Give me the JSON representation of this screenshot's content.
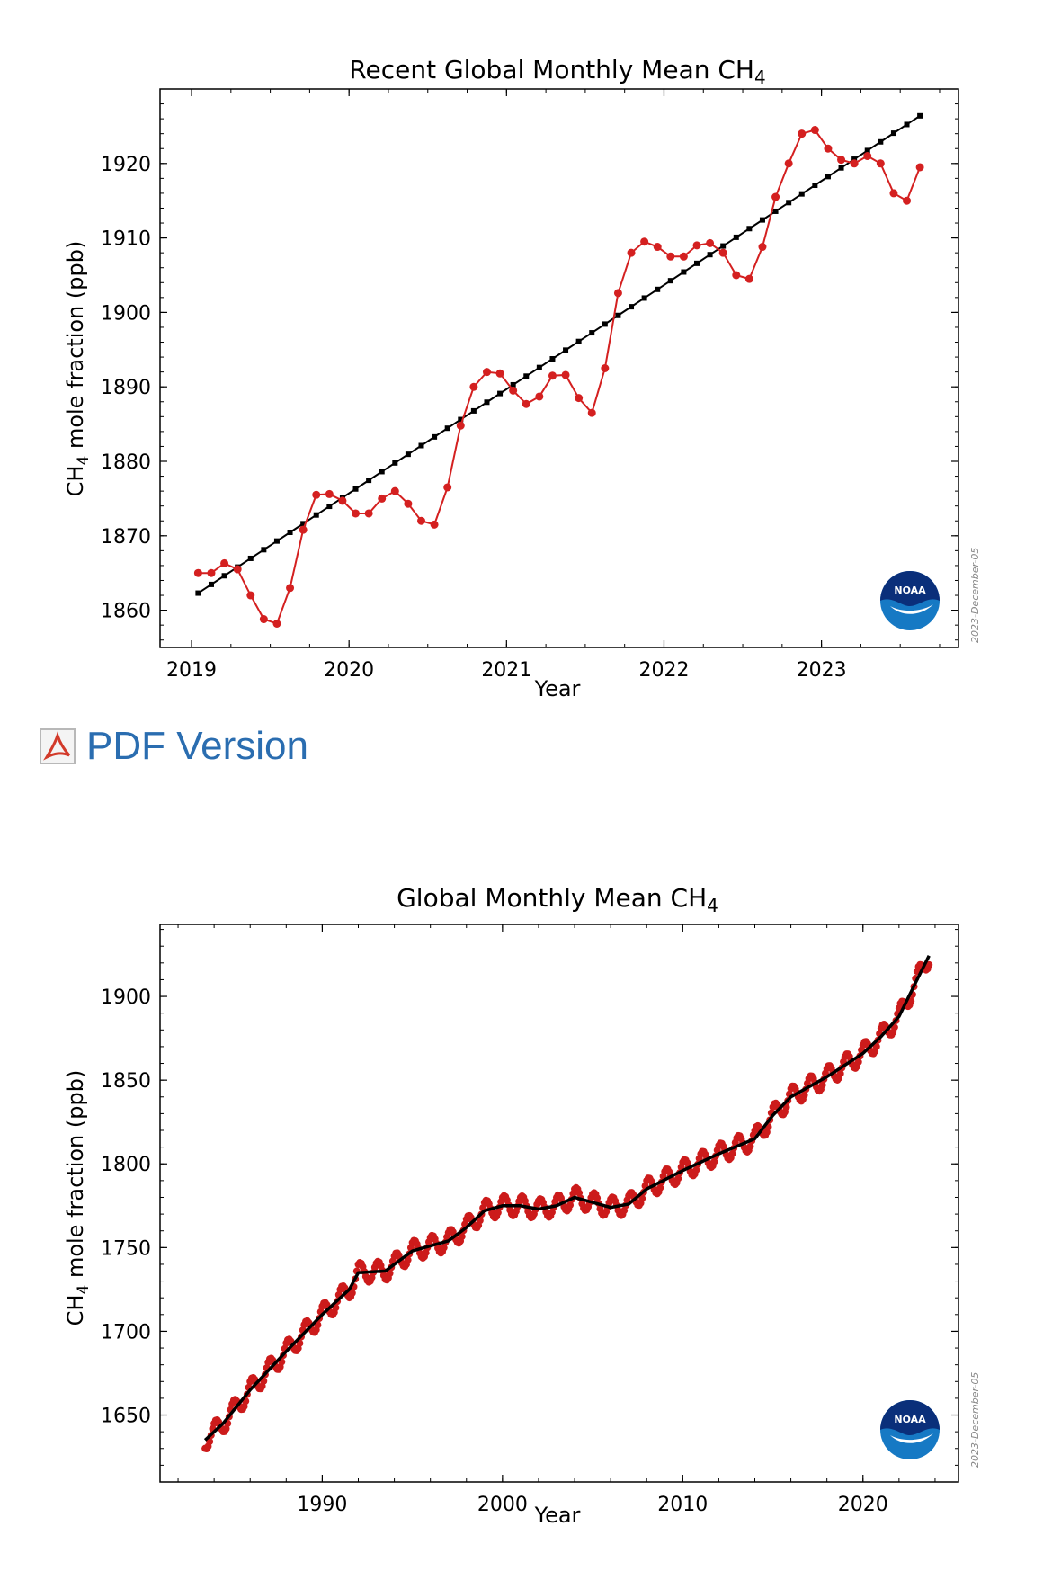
{
  "pdf_link": {
    "label": "PDF Version"
  },
  "chart_data": [
    {
      "type": "line",
      "title": "Recent Global Monthly Mean CH",
      "title_sub": "4",
      "xlabel": "Year",
      "ylabel_prefix": "CH",
      "ylabel_sub": "4",
      "ylabel_suffix": " mole fraction (ppb)",
      "watermark": "2023-December-05",
      "xlim": [
        2018.8,
        2023.87
      ],
      "ylim": [
        1855,
        1930
      ],
      "xticks": [
        2019,
        2020,
        2021,
        2022,
        2023
      ],
      "xtick_labels": [
        "2019",
        "2020",
        "2021",
        "2022",
        "2023"
      ],
      "yticks": [
        1860,
        1870,
        1880,
        1890,
        1900,
        1910,
        1920
      ],
      "ytick_labels": [
        "1860",
        "1870",
        "1880",
        "1890",
        "1900",
        "1910",
        "1920"
      ],
      "series": [
        {
          "color": "#d42020",
          "marker": "circle",
          "x_start": 2019.042,
          "x_step": 0.08333,
          "values": [
            1865.0,
            1865.0,
            1866.3,
            1865.5,
            1862.0,
            1858.8,
            1858.2,
            1863.0,
            1870.8,
            1875.5,
            1875.6,
            1874.7,
            1873.0,
            1873.0,
            1875.0,
            1876.0,
            1874.3,
            1872.0,
            1871.5,
            1876.5,
            1884.8,
            1890.0,
            1892.0,
            1891.8,
            1889.5,
            1887.7,
            1888.7,
            1891.5,
            1891.6,
            1888.5,
            1886.5,
            1892.5,
            1902.6,
            1908.0,
            1909.5,
            1908.8,
            1907.5,
            1907.5,
            1909.0,
            1909.3,
            1908.0,
            1905.0,
            1904.5,
            1908.8,
            1915.5,
            1920.0,
            1924.0,
            1924.5,
            1922.0,
            1920.5,
            1920.0,
            1921.0,
            1920.0,
            1916.0,
            1915.0,
            1919.5
          ]
        },
        {
          "color": "#000000",
          "marker": "square",
          "x_start": 2019.042,
          "x_step": 0.08333,
          "y_start": 1862.3,
          "y_end": 1926.4,
          "count": 56
        }
      ]
    },
    {
      "type": "line",
      "title": "Global Monthly Mean CH",
      "title_sub": "4",
      "xlabel": "Year",
      "ylabel_prefix": "CH",
      "ylabel_sub": "4",
      "ylabel_suffix": " mole fraction (ppb)",
      "watermark": "2023-December-05",
      "xlim": [
        1981.0,
        2025.3
      ],
      "ylim": [
        1610,
        1943
      ],
      "xticks": [
        1990,
        2000,
        2010,
        2020
      ],
      "xtick_labels": [
        "1990",
        "2000",
        "2010",
        "2020"
      ],
      "yticks": [
        1650,
        1700,
        1750,
        1800,
        1850,
        1900
      ],
      "ytick_labels": [
        "1650",
        "1700",
        "1750",
        "1800",
        "1850",
        "1900"
      ],
      "trend_anchors": {
        "x": [
          1983.5,
          1984.5,
          1986.0,
          1988.0,
          1990.0,
          1991.5,
          1992.0,
          1993.5,
          1995.0,
          1997.0,
          1998.0,
          1999.0,
          2000.0,
          2001.0,
          2002.0,
          2003.0,
          2004.0,
          2005.0,
          2006.0,
          2007.0,
          2008.0,
          2010.0,
          2012.0,
          2014.0,
          2015.0,
          2016.0,
          2018.0,
          2020.0,
          2021.0,
          2022.0,
          2023.0,
          2023.7
        ],
        "y": [
          1635,
          1645,
          1665,
          1688,
          1710,
          1725,
          1735,
          1736,
          1748,
          1754,
          1762,
          1772,
          1775,
          1775,
          1773,
          1775,
          1780,
          1777,
          1774,
          1776,
          1785,
          1796,
          1806,
          1815,
          1829,
          1840,
          1852,
          1866,
          1876,
          1888,
          1910,
          1925
        ]
      },
      "seasonal_amplitude": 6,
      "series": [
        {
          "color": "#cc1b1b",
          "marker": "circle",
          "note_free": true
        },
        {
          "color": "#000000",
          "marker": "line"
        }
      ]
    }
  ],
  "logo": {
    "text": "NOAA"
  }
}
